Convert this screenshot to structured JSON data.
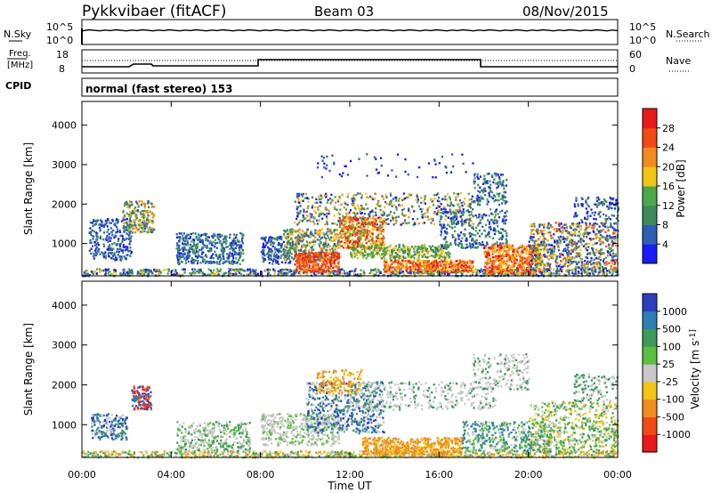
{
  "header": {
    "station": "Pykkvibaer (fitACF)",
    "beam": "Beam 03",
    "date": "08/Nov/2015"
  },
  "noise_panel": {
    "left_label": "N.Sky",
    "right_label": "N.Search",
    "tick_top": "10^5",
    "tick_bottom": "10^0"
  },
  "freq_panel": {
    "left_label_line1": "Freq.",
    "left_label_line2": "[MHz]",
    "left_tick_top": "18",
    "left_tick_bottom": "8",
    "right_label": "Nave",
    "right_tick_top": "60",
    "right_tick_bottom": "0"
  },
  "cpid_panel": {
    "label": "CPID",
    "text": "normal (fast stereo) 153"
  },
  "colors": {
    "power": [
      "#1a1aff",
      "#2c5fb5",
      "#3f8a5a",
      "#4aa84a",
      "#f2c414",
      "#f08c1e",
      "#f24a14",
      "#ea1a1a"
    ],
    "velocity": [
      "#2c3fbf",
      "#2c7fb5",
      "#3f9a5a",
      "#5cbf3f",
      "#c8c8c8",
      "#f2c414",
      "#f08c1e",
      "#f24a14",
      "#ea1a1a"
    ]
  },
  "chart_data": [
    {
      "type": "heatmap",
      "ylabel": "Slant Range [km]",
      "ylim": [
        180,
        4600
      ],
      "yticks": [
        "1000",
        "2000",
        "3000",
        "4000"
      ],
      "colorbar_label": "Power [dB]",
      "colorbar_ticks": [
        "4",
        "8",
        "12",
        "16",
        "20",
        "24",
        "28"
      ]
    },
    {
      "type": "heatmap",
      "ylabel": "Slant Range [km]",
      "ylim": [
        180,
        4600
      ],
      "yticks": [
        "1000",
        "2000",
        "3000",
        "4000"
      ],
      "colorbar_label": "Velocity [m s^-1]",
      "colorbar_ticks": [
        "1000",
        "500",
        "100",
        "25",
        "-25",
        "-100",
        "-500",
        "-1000"
      ],
      "xlabel": "Time UT",
      "xticks": [
        "00:00",
        "04:00",
        "08:00",
        "12:00",
        "16:00",
        "20:00",
        "00:00"
      ],
      "xlim": [
        "00:00",
        "24:00"
      ]
    }
  ]
}
